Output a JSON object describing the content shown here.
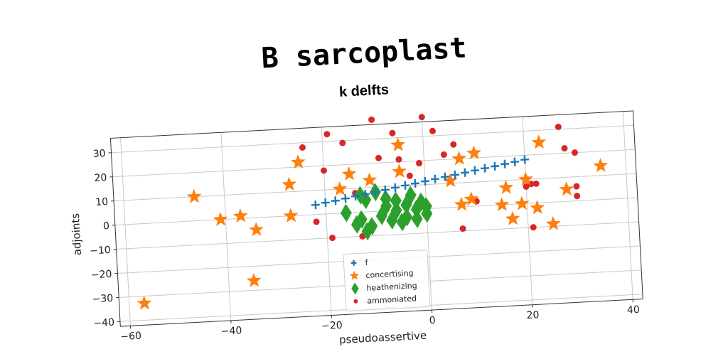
{
  "title": "B sarcoplast",
  "subtitle": "k delfts",
  "chart_data": {
    "type": "scatter",
    "xlabel": "pseudoassertive",
    "ylabel": "adjoints",
    "xlim": [
      -62,
      42
    ],
    "ylim": [
      -42,
      36
    ],
    "xticks": [
      -60,
      -40,
      -20,
      0,
      20,
      40
    ],
    "yticks": [
      -40,
      -30,
      -20,
      -10,
      0,
      10,
      20,
      30
    ],
    "grid": true,
    "legend_position": "lower-center",
    "colors": {
      "f": "#1f77b4",
      "concertising": "#ff7f0e",
      "heathenizing": "#2ca02c",
      "ammoniated": "#d62728"
    },
    "series": [
      {
        "name": "f",
        "marker": "plus",
        "x": [
          -22,
          -20,
          -18,
          -16,
          -14,
          -12,
          -10,
          -8,
          -6,
          -4,
          -2,
          0,
          2,
          4,
          6,
          8,
          10,
          12,
          14,
          16,
          18,
          20
        ],
        "y": [
          4,
          4.7,
          5.3,
          6,
          6.7,
          7.4,
          8,
          8.7,
          9.4,
          10.1,
          10.7,
          11.4,
          12.1,
          12.8,
          13.4,
          14.1,
          14.8,
          15.5,
          16.1,
          16.8,
          17.5,
          18.2
        ]
      },
      {
        "name": "concertising",
        "marker": "star",
        "x": [
          -57,
          -46,
          -41,
          -37,
          -34,
          -35,
          -27,
          -27,
          -25,
          -17,
          -15,
          -11,
          -5,
          -5,
          5,
          7,
          7,
          9,
          10,
          15,
          16,
          17,
          19,
          20,
          22,
          23,
          25,
          28,
          35
        ],
        "y": [
          -33,
          10,
          0,
          1,
          -5,
          -26,
          0,
          13,
          22,
          10,
          16,
          13,
          16,
          27,
          11,
          1,
          20,
          3,
          22,
          0,
          7,
          -6,
          0,
          10,
          -2,
          25,
          -9,
          5,
          14
        ]
      },
      {
        "name": "heathenizing",
        "marker": "diamond",
        "x": [
          -16,
          -14,
          -13,
          -13,
          -12,
          -12,
          -11,
          -10,
          -9,
          -8,
          -8,
          -7,
          -6,
          -6,
          -5,
          -4,
          -4,
          -3,
          -2,
          -2,
          -1,
          0,
          0
        ],
        "y": [
          0,
          -5,
          -3,
          7,
          5,
          -8,
          -6,
          8,
          -2,
          2,
          5,
          -4,
          0,
          4,
          -5,
          2,
          -3,
          6,
          0,
          -4,
          3,
          1,
          -2
        ]
      },
      {
        "name": "ammoniated",
        "marker": "dot",
        "x": [
          -24,
          -22,
          -20,
          -19,
          -19,
          -16,
          -14,
          -13,
          -10,
          -9,
          -6,
          -5,
          -3,
          -2,
          -1,
          0,
          2,
          4,
          6,
          7,
          10,
          20,
          21,
          21,
          22,
          27,
          28,
          30,
          30,
          30
        ],
        "y": [
          28,
          -3,
          18,
          33,
          -10,
          29,
          8,
          -10,
          38,
          22,
          32,
          21,
          14,
          1,
          19,
          38,
          32,
          22,
          26,
          -9,
          2,
          7,
          8,
          -10,
          8,
          31,
          22,
          20,
          6,
          2
        ]
      }
    ]
  }
}
